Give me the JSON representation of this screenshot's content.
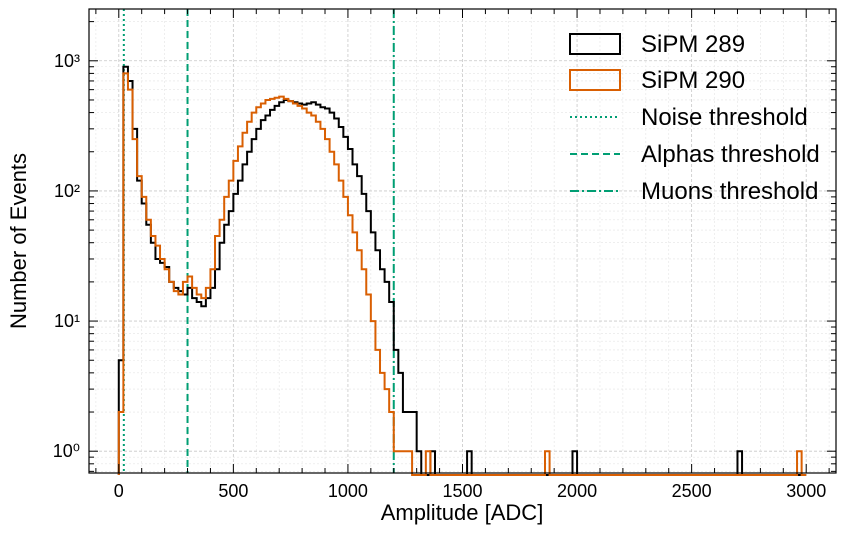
{
  "chart_data": {
    "type": "step-histogram",
    "title": "",
    "xlabel": "Amplitude [ADC]",
    "ylabel": "Number of Events",
    "xlim": [
      -130,
      3130
    ],
    "ylim": [
      0.68,
      2500
    ],
    "yscale": "log",
    "grid": true,
    "legend_position": "top-right",
    "bin_width": 20,
    "bin_start": 0,
    "x_ticks": [
      0,
      500,
      1000,
      1500,
      2000,
      2500,
      3000
    ],
    "x_tick_labels": [
      "0",
      "500",
      "1000",
      "1500",
      "2000",
      "2500",
      "3000"
    ],
    "y_ticks": [
      1,
      10,
      100,
      1000
    ],
    "y_tick_labels": [
      "10⁰",
      "10¹",
      "10²",
      "10³"
    ],
    "series": [
      {
        "name": "SiPM 289",
        "color": "#000000",
        "values": [
          5,
          900,
          700,
          300,
          120,
          80,
          55,
          40,
          30,
          28,
          26,
          20,
          18,
          17,
          16,
          18,
          15,
          14,
          13,
          15,
          18,
          25,
          40,
          55,
          70,
          95,
          120,
          160,
          200,
          250,
          300,
          350,
          380,
          420,
          450,
          480,
          500,
          490,
          480,
          470,
          460,
          470,
          480,
          460,
          440,
          430,
          400,
          360,
          310,
          260,
          210,
          160,
          130,
          95,
          70,
          48,
          35,
          25,
          20,
          14,
          6,
          4,
          2,
          2,
          2,
          1,
          0,
          0,
          1,
          0,
          0,
          0,
          0,
          0,
          0,
          0,
          1,
          0,
          0,
          0,
          0,
          0,
          0,
          0,
          0,
          0,
          0,
          0,
          0,
          0,
          0,
          0,
          0,
          0,
          0,
          0,
          0,
          0,
          0,
          1,
          0,
          0,
          0,
          0,
          0,
          0,
          0,
          0,
          0,
          0,
          0,
          0,
          0,
          0,
          0,
          0,
          0,
          0,
          0,
          0,
          0,
          0,
          0,
          0,
          0,
          0,
          0,
          0,
          0,
          0,
          0,
          0,
          0,
          0,
          0,
          1,
          0,
          0,
          0,
          0,
          0,
          0,
          0,
          0,
          0,
          0,
          0,
          0,
          0,
          0
        ]
      },
      {
        "name": "SiPM 290",
        "color": "#d95f02",
        "values": [
          2,
          800,
          600,
          250,
          130,
          90,
          60,
          45,
          38,
          30,
          25,
          20,
          17,
          16,
          20,
          22,
          18,
          16,
          15,
          18,
          25,
          45,
          60,
          90,
          120,
          170,
          220,
          280,
          340,
          400,
          440,
          470,
          500,
          510,
          520,
          530,
          510,
          490,
          470,
          450,
          430,
          400,
          380,
          340,
          300,
          250,
          200,
          160,
          120,
          90,
          65,
          48,
          35,
          25,
          16,
          10,
          6,
          4,
          3,
          2,
          1,
          1,
          1,
          1,
          0,
          0,
          0,
          1,
          0,
          0,
          0,
          0,
          0,
          0,
          0,
          0,
          0,
          0,
          0,
          0,
          0,
          0,
          0,
          0,
          0,
          0,
          0,
          0,
          0,
          0,
          0,
          0,
          0,
          1,
          0,
          0,
          0,
          0,
          0,
          0,
          0,
          0,
          0,
          0,
          0,
          0,
          0,
          0,
          0,
          0,
          0,
          0,
          0,
          0,
          0,
          0,
          0,
          0,
          0,
          0,
          0,
          0,
          0,
          0,
          0,
          0,
          0,
          0,
          0,
          0,
          0,
          0,
          0,
          0,
          0,
          0,
          0,
          0,
          0,
          0,
          0,
          0,
          0,
          0,
          0,
          0,
          0,
          0,
          1,
          0
        ]
      }
    ],
    "threshold_lines": [
      {
        "name": "Noise  threshold",
        "x": 22,
        "style": "dotted",
        "color": "#009e73"
      },
      {
        "name": "Alphas threshold",
        "x": 300,
        "style": "dashed",
        "color": "#009e73"
      },
      {
        "name": "Muons threshold",
        "x": 1200,
        "style": "dashdot",
        "color": "#009e73"
      }
    ]
  }
}
